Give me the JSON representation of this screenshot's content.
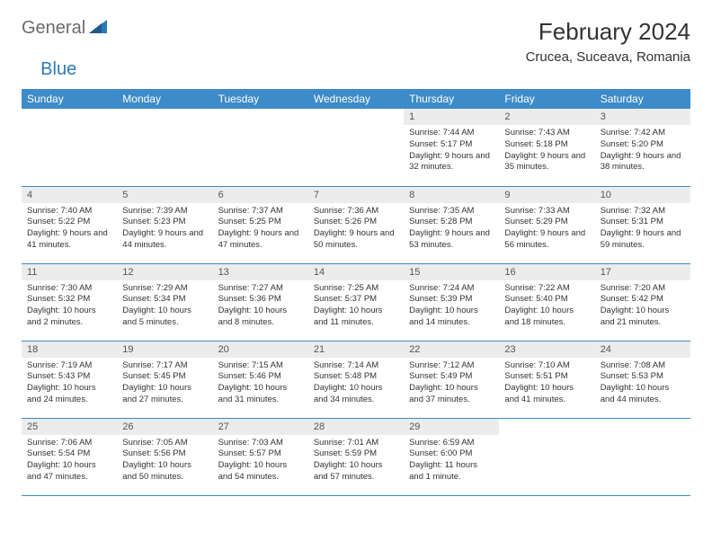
{
  "brand": {
    "part1": "General",
    "part2": "Blue"
  },
  "title": "February 2024",
  "location": "Crucea, Suceava, Romania",
  "colors": {
    "header_bg": "#3d8bc8",
    "header_text": "#ffffff",
    "daynum_bg": "#ececec",
    "cell_border": "#3d8bc8",
    "logo_gray": "#6b6b6b",
    "logo_blue": "#2a7ab8"
  },
  "dayHeaders": [
    "Sunday",
    "Monday",
    "Tuesday",
    "Wednesday",
    "Thursday",
    "Friday",
    "Saturday"
  ],
  "weeks": [
    [
      null,
      null,
      null,
      null,
      {
        "n": "1",
        "sr": "7:44 AM",
        "ss": "5:17 PM",
        "dl": "9 hours and 32 minutes."
      },
      {
        "n": "2",
        "sr": "7:43 AM",
        "ss": "5:18 PM",
        "dl": "9 hours and 35 minutes."
      },
      {
        "n": "3",
        "sr": "7:42 AM",
        "ss": "5:20 PM",
        "dl": "9 hours and 38 minutes."
      }
    ],
    [
      {
        "n": "4",
        "sr": "7:40 AM",
        "ss": "5:22 PM",
        "dl": "9 hours and 41 minutes."
      },
      {
        "n": "5",
        "sr": "7:39 AM",
        "ss": "5:23 PM",
        "dl": "9 hours and 44 minutes."
      },
      {
        "n": "6",
        "sr": "7:37 AM",
        "ss": "5:25 PM",
        "dl": "9 hours and 47 minutes."
      },
      {
        "n": "7",
        "sr": "7:36 AM",
        "ss": "5:26 PM",
        "dl": "9 hours and 50 minutes."
      },
      {
        "n": "8",
        "sr": "7:35 AM",
        "ss": "5:28 PM",
        "dl": "9 hours and 53 minutes."
      },
      {
        "n": "9",
        "sr": "7:33 AM",
        "ss": "5:29 PM",
        "dl": "9 hours and 56 minutes."
      },
      {
        "n": "10",
        "sr": "7:32 AM",
        "ss": "5:31 PM",
        "dl": "9 hours and 59 minutes."
      }
    ],
    [
      {
        "n": "11",
        "sr": "7:30 AM",
        "ss": "5:32 PM",
        "dl": "10 hours and 2 minutes."
      },
      {
        "n": "12",
        "sr": "7:29 AM",
        "ss": "5:34 PM",
        "dl": "10 hours and 5 minutes."
      },
      {
        "n": "13",
        "sr": "7:27 AM",
        "ss": "5:36 PM",
        "dl": "10 hours and 8 minutes."
      },
      {
        "n": "14",
        "sr": "7:25 AM",
        "ss": "5:37 PM",
        "dl": "10 hours and 11 minutes."
      },
      {
        "n": "15",
        "sr": "7:24 AM",
        "ss": "5:39 PM",
        "dl": "10 hours and 14 minutes."
      },
      {
        "n": "16",
        "sr": "7:22 AM",
        "ss": "5:40 PM",
        "dl": "10 hours and 18 minutes."
      },
      {
        "n": "17",
        "sr": "7:20 AM",
        "ss": "5:42 PM",
        "dl": "10 hours and 21 minutes."
      }
    ],
    [
      {
        "n": "18",
        "sr": "7:19 AM",
        "ss": "5:43 PM",
        "dl": "10 hours and 24 minutes."
      },
      {
        "n": "19",
        "sr": "7:17 AM",
        "ss": "5:45 PM",
        "dl": "10 hours and 27 minutes."
      },
      {
        "n": "20",
        "sr": "7:15 AM",
        "ss": "5:46 PM",
        "dl": "10 hours and 31 minutes."
      },
      {
        "n": "21",
        "sr": "7:14 AM",
        "ss": "5:48 PM",
        "dl": "10 hours and 34 minutes."
      },
      {
        "n": "22",
        "sr": "7:12 AM",
        "ss": "5:49 PM",
        "dl": "10 hours and 37 minutes."
      },
      {
        "n": "23",
        "sr": "7:10 AM",
        "ss": "5:51 PM",
        "dl": "10 hours and 41 minutes."
      },
      {
        "n": "24",
        "sr": "7:08 AM",
        "ss": "5:53 PM",
        "dl": "10 hours and 44 minutes."
      }
    ],
    [
      {
        "n": "25",
        "sr": "7:06 AM",
        "ss": "5:54 PM",
        "dl": "10 hours and 47 minutes."
      },
      {
        "n": "26",
        "sr": "7:05 AM",
        "ss": "5:56 PM",
        "dl": "10 hours and 50 minutes."
      },
      {
        "n": "27",
        "sr": "7:03 AM",
        "ss": "5:57 PM",
        "dl": "10 hours and 54 minutes."
      },
      {
        "n": "28",
        "sr": "7:01 AM",
        "ss": "5:59 PM",
        "dl": "10 hours and 57 minutes."
      },
      {
        "n": "29",
        "sr": "6:59 AM",
        "ss": "6:00 PM",
        "dl": "11 hours and 1 minute."
      },
      null,
      null
    ]
  ],
  "labels": {
    "sunrise": "Sunrise:",
    "sunset": "Sunset:",
    "daylight": "Daylight:"
  }
}
